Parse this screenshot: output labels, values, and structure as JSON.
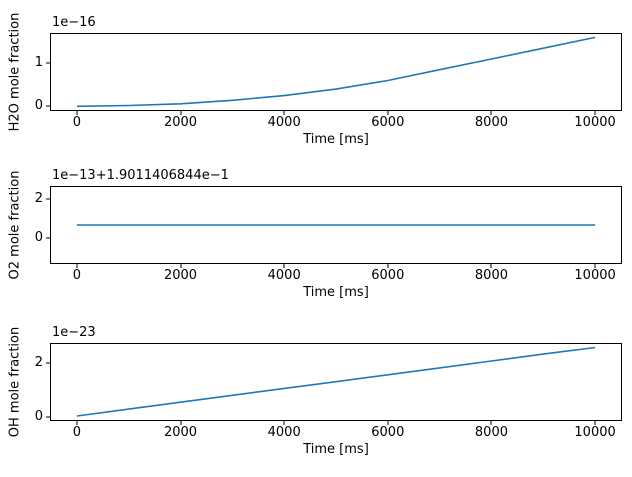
{
  "figure": {
    "background": "#ffffff",
    "text_color": "#000000",
    "spine_color": "#000000"
  },
  "chart_data": [
    {
      "type": "line",
      "xlabel": "Time [ms]",
      "ylabel": "H2O mole fraction",
      "offset_text": "1e−16",
      "x": [
        0,
        1000,
        2000,
        3000,
        4000,
        5000,
        6000,
        7000,
        8000,
        9000,
        10000
      ],
      "y": [
        0.0,
        0.02,
        0.06,
        0.14,
        0.25,
        0.4,
        0.6,
        0.85,
        1.1,
        1.35,
        1.6
      ],
      "xlim": [
        -500,
        10500
      ],
      "ylim": [
        -0.085,
        1.68
      ],
      "xticks": [
        0,
        2000,
        4000,
        6000,
        8000,
        10000
      ],
      "yticks": [
        0,
        1
      ],
      "line_color": "#1f77b4",
      "grid": false,
      "legend": false
    },
    {
      "type": "line",
      "xlabel": "Time [ms]",
      "ylabel": "O2 mole fraction",
      "offset_text": "1e−13+1.9011406844e−1",
      "x": [
        0,
        1000,
        2000,
        3000,
        4000,
        5000,
        6000,
        7000,
        8000,
        9000,
        10000
      ],
      "y": [
        0.65,
        0.65,
        0.65,
        0.65,
        0.65,
        0.65,
        0.65,
        0.65,
        0.65,
        0.65,
        0.65
      ],
      "xlim": [
        -500,
        10500
      ],
      "ylim": [
        -1.3,
        2.6
      ],
      "xticks": [
        0,
        2000,
        4000,
        6000,
        8000,
        10000
      ],
      "yticks": [
        0,
        2
      ],
      "line_color": "#1f77b4",
      "grid": false,
      "legend": false
    },
    {
      "type": "line",
      "xlabel": "Time [ms]",
      "ylabel": "OH mole fraction",
      "offset_text": "1e−23",
      "x": [
        0,
        1000,
        2000,
        3000,
        4000,
        5000,
        6000,
        7000,
        8000,
        9000,
        10000
      ],
      "y": [
        0.02,
        0.28,
        0.54,
        0.8,
        1.06,
        1.31,
        1.57,
        1.83,
        2.09,
        2.35,
        2.6
      ],
      "xlim": [
        -500,
        10500
      ],
      "ylim": [
        -0.13,
        2.73
      ],
      "xticks": [
        0,
        2000,
        4000,
        6000,
        8000,
        10000
      ],
      "yticks": [
        0,
        2
      ],
      "line_color": "#1f77b4",
      "grid": false,
      "legend": false
    }
  ]
}
